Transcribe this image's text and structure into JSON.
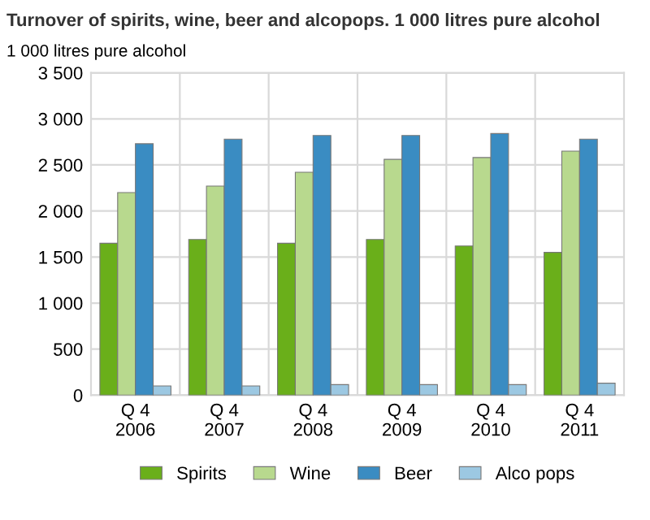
{
  "chart_data": {
    "type": "bar",
    "title": "Turnover of spirits, wine, beer and alcopops. 1 000 litres pure alcohol",
    "ylabel": "1 000 litres pure alcohol",
    "categories": [
      "Q 4\n2006",
      "Q 4\n2007",
      "Q 4\n2008",
      "Q 4\n2009",
      "Q 4\n2010",
      "Q 4\n2011"
    ],
    "series": [
      {
        "name": "Spirits",
        "color": "#6aaf1a",
        "values": [
          1650,
          1690,
          1650,
          1690,
          1620,
          1550
        ]
      },
      {
        "name": "Wine",
        "color": "#b8d98e",
        "values": [
          2200,
          2270,
          2420,
          2560,
          2580,
          2650
        ]
      },
      {
        "name": "Beer",
        "color": "#3a8cc2",
        "values": [
          2730,
          2780,
          2820,
          2820,
          2840,
          2780
        ]
      },
      {
        "name": "Alco pops",
        "color": "#9cc8e2",
        "values": [
          100,
          100,
          115,
          115,
          115,
          130
        ]
      }
    ],
    "ylim": [
      0,
      3500
    ],
    "yticks": [
      {
        "value": 0,
        "label": "0"
      },
      {
        "value": 500,
        "label": "500"
      },
      {
        "value": 1000,
        "label": "1 000"
      },
      {
        "value": 1500,
        "label": "1 500"
      },
      {
        "value": 2000,
        "label": "2 000"
      },
      {
        "value": 2500,
        "label": "2 500"
      },
      {
        "value": 3000,
        "label": "3 000"
      },
      {
        "value": 3500,
        "label": "3 500"
      }
    ],
    "grid": true,
    "legend": "bottom"
  }
}
